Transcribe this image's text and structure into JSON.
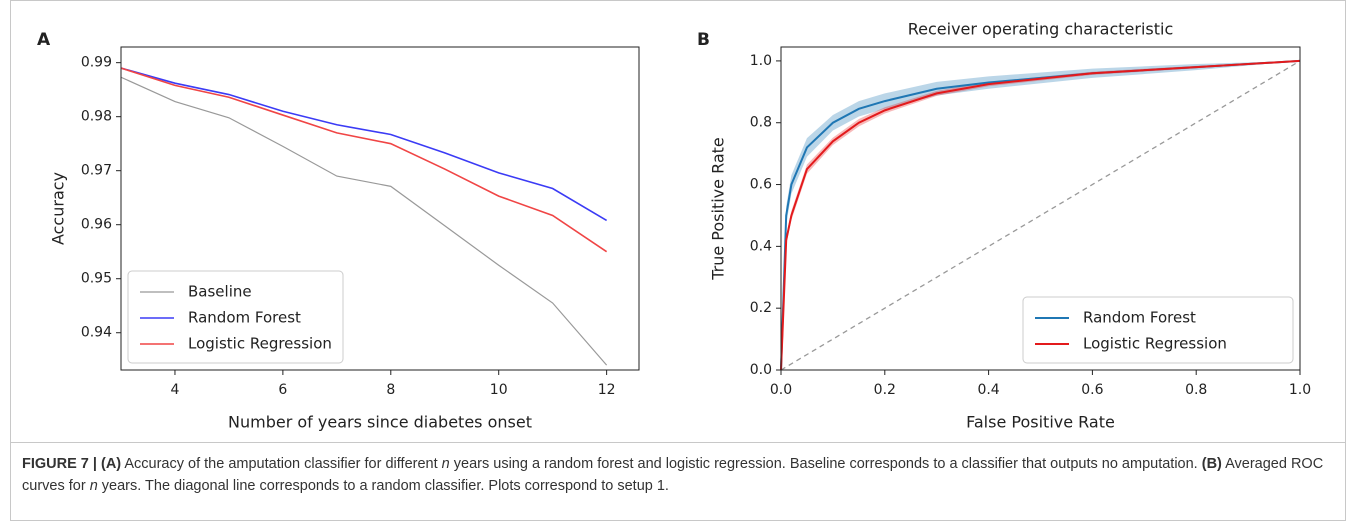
{
  "chart_data": [
    {
      "type": "line",
      "panel": "A",
      "xlabel": "Number of years since diabetes onset",
      "ylabel": "Accuracy",
      "x": [
        3,
        4,
        5,
        6,
        7,
        8,
        9,
        10,
        11,
        12
      ],
      "series": [
        {
          "name": "Baseline",
          "color": "#999999",
          "width": 1.2,
          "values": [
            0.9873,
            0.9828,
            0.9798,
            0.9745,
            0.969,
            0.9671,
            0.9598,
            0.9525,
            0.9455,
            0.934
          ]
        },
        {
          "name": "Random Forest",
          "color": "#3b3bf5",
          "width": 1.6,
          "values": [
            0.989,
            0.9862,
            0.9841,
            0.981,
            0.9785,
            0.9767,
            0.9733,
            0.9696,
            0.9667,
            0.9608
          ]
        },
        {
          "name": "Logistic Regression",
          "color": "#f04545",
          "width": 1.6,
          "values": [
            0.989,
            0.9858,
            0.9836,
            0.9803,
            0.977,
            0.975,
            0.9703,
            0.9653,
            0.9617,
            0.955
          ]
        }
      ],
      "xlim": [
        3,
        12.6
      ],
      "ylim": [
        0.9331,
        0.9929
      ],
      "xticks": [
        4,
        6,
        8,
        10,
        12
      ],
      "yticks": [
        0.94,
        0.95,
        0.96,
        0.97,
        0.98,
        0.99
      ],
      "legend": "lower left"
    },
    {
      "type": "line",
      "panel": "B",
      "title": "Receiver operating characteristic",
      "xlabel": "False Positive Rate",
      "ylabel": "True Positive Rate",
      "x": [
        0,
        0.01,
        0.02,
        0.05,
        0.1,
        0.15,
        0.2,
        0.3,
        0.4,
        0.6,
        0.8,
        1.0
      ],
      "series": [
        {
          "name": "Random Forest",
          "color": "#1f77b4",
          "width": 2,
          "values": [
            0,
            0.5,
            0.6,
            0.72,
            0.8,
            0.845,
            0.87,
            0.91,
            0.93,
            0.96,
            0.98,
            1
          ],
          "spread": [
            0,
            0.03,
            0.03,
            0.03,
            0.025,
            0.025,
            0.025,
            0.022,
            0.02,
            0.015,
            0.01,
            0
          ]
        },
        {
          "name": "Logistic Regression",
          "color": "#e31a1c",
          "width": 2,
          "values": [
            0,
            0.42,
            0.5,
            0.65,
            0.74,
            0.8,
            0.84,
            0.895,
            0.925,
            0.96,
            0.98,
            1
          ],
          "spread": [
            0,
            0.015,
            0.015,
            0.015,
            0.012,
            0.012,
            0.01,
            0.008,
            0.007,
            0.005,
            0.004,
            0
          ]
        }
      ],
      "reference_line": {
        "x": [
          0,
          1
        ],
        "y": [
          0,
          1
        ],
        "color": "#999999"
      },
      "xlim": [
        0,
        1
      ],
      "ylim": [
        0,
        1.045
      ],
      "xticks": [
        {
          "value": 0,
          "label": "0.0"
        },
        {
          "value": 0.2,
          "label": "0.2"
        },
        {
          "value": 0.4,
          "label": "0.4"
        },
        {
          "value": 0.6,
          "label": "0.6"
        },
        {
          "value": 0.8,
          "label": "0.8"
        },
        {
          "value": 1,
          "label": "1.0"
        }
      ],
      "yticks": [
        {
          "value": 0,
          "label": "0.0"
        },
        {
          "value": 0.2,
          "label": "0.2"
        },
        {
          "value": 0.4,
          "label": "0.4"
        },
        {
          "value": 0.6,
          "label": "0.6"
        },
        {
          "value": 0.8,
          "label": "0.8"
        },
        {
          "value": 1,
          "label": "1.0"
        }
      ],
      "legend": "lower right"
    }
  ],
  "caption": [
    {
      "text": "FIGURE 7 | ",
      "style": "bold"
    },
    {
      "text": "(A)",
      "style": "bold"
    },
    {
      "text": " Accuracy of the amputation classifier for different ",
      "style": "normal"
    },
    {
      "text": "n",
      "style": "italic"
    },
    {
      "text": " years using a random forest and logistic regression. Baseline corresponds to a classifier that outputs no amputation. ",
      "style": "normal"
    },
    {
      "text": "(B)",
      "style": "bold"
    },
    {
      "text": " Averaged ROC curves for ",
      "style": "normal"
    },
    {
      "text": "n",
      "style": "italic"
    },
    {
      "text": " years. The diagonal line corresponds to a random classifier. Plots correspond to setup 1.",
      "style": "normal"
    }
  ]
}
